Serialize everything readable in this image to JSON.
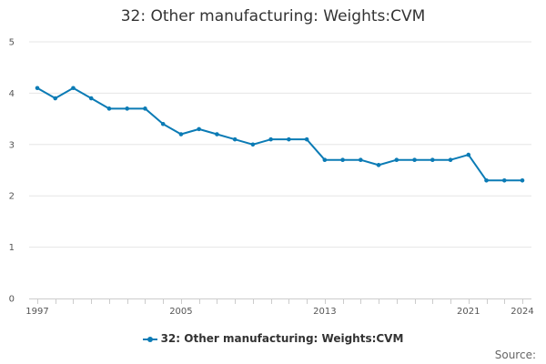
{
  "chart_data": {
    "type": "line",
    "title": "32: Other manufacturing: Weights:CVM",
    "xlabel": "",
    "ylabel": "",
    "x": [
      1997,
      1998,
      1999,
      2000,
      2001,
      2002,
      2003,
      2004,
      2005,
      2006,
      2007,
      2008,
      2009,
      2010,
      2011,
      2012,
      2013,
      2014,
      2015,
      2016,
      2017,
      2018,
      2019,
      2020,
      2021,
      2022,
      2023,
      2024
    ],
    "x_tick_labels": [
      "1997",
      "2005",
      "2013",
      "2021",
      "2024"
    ],
    "x_tick_values": [
      1997,
      2005,
      2013,
      2021,
      2024
    ],
    "xlim": [
      1997,
      2024
    ],
    "y_tick_labels": [
      "0",
      "1",
      "2",
      "3",
      "4",
      "5"
    ],
    "ylim": [
      0,
      5
    ],
    "grid": true,
    "legend_position": "bottom-center",
    "series": [
      {
        "name": "32: Other manufacturing: Weights:CVM",
        "color": "#0b7bb5",
        "values": [
          4.1,
          3.9,
          4.1,
          3.9,
          3.7,
          3.7,
          3.7,
          3.4,
          3.2,
          3.3,
          3.2,
          3.1,
          3.0,
          3.1,
          3.1,
          3.1,
          2.7,
          2.7,
          2.7,
          2.6,
          2.7,
          2.7,
          2.7,
          2.7,
          2.8,
          2.3,
          2.3,
          2.3
        ]
      }
    ]
  },
  "footer": {
    "source_label": "Source:"
  }
}
